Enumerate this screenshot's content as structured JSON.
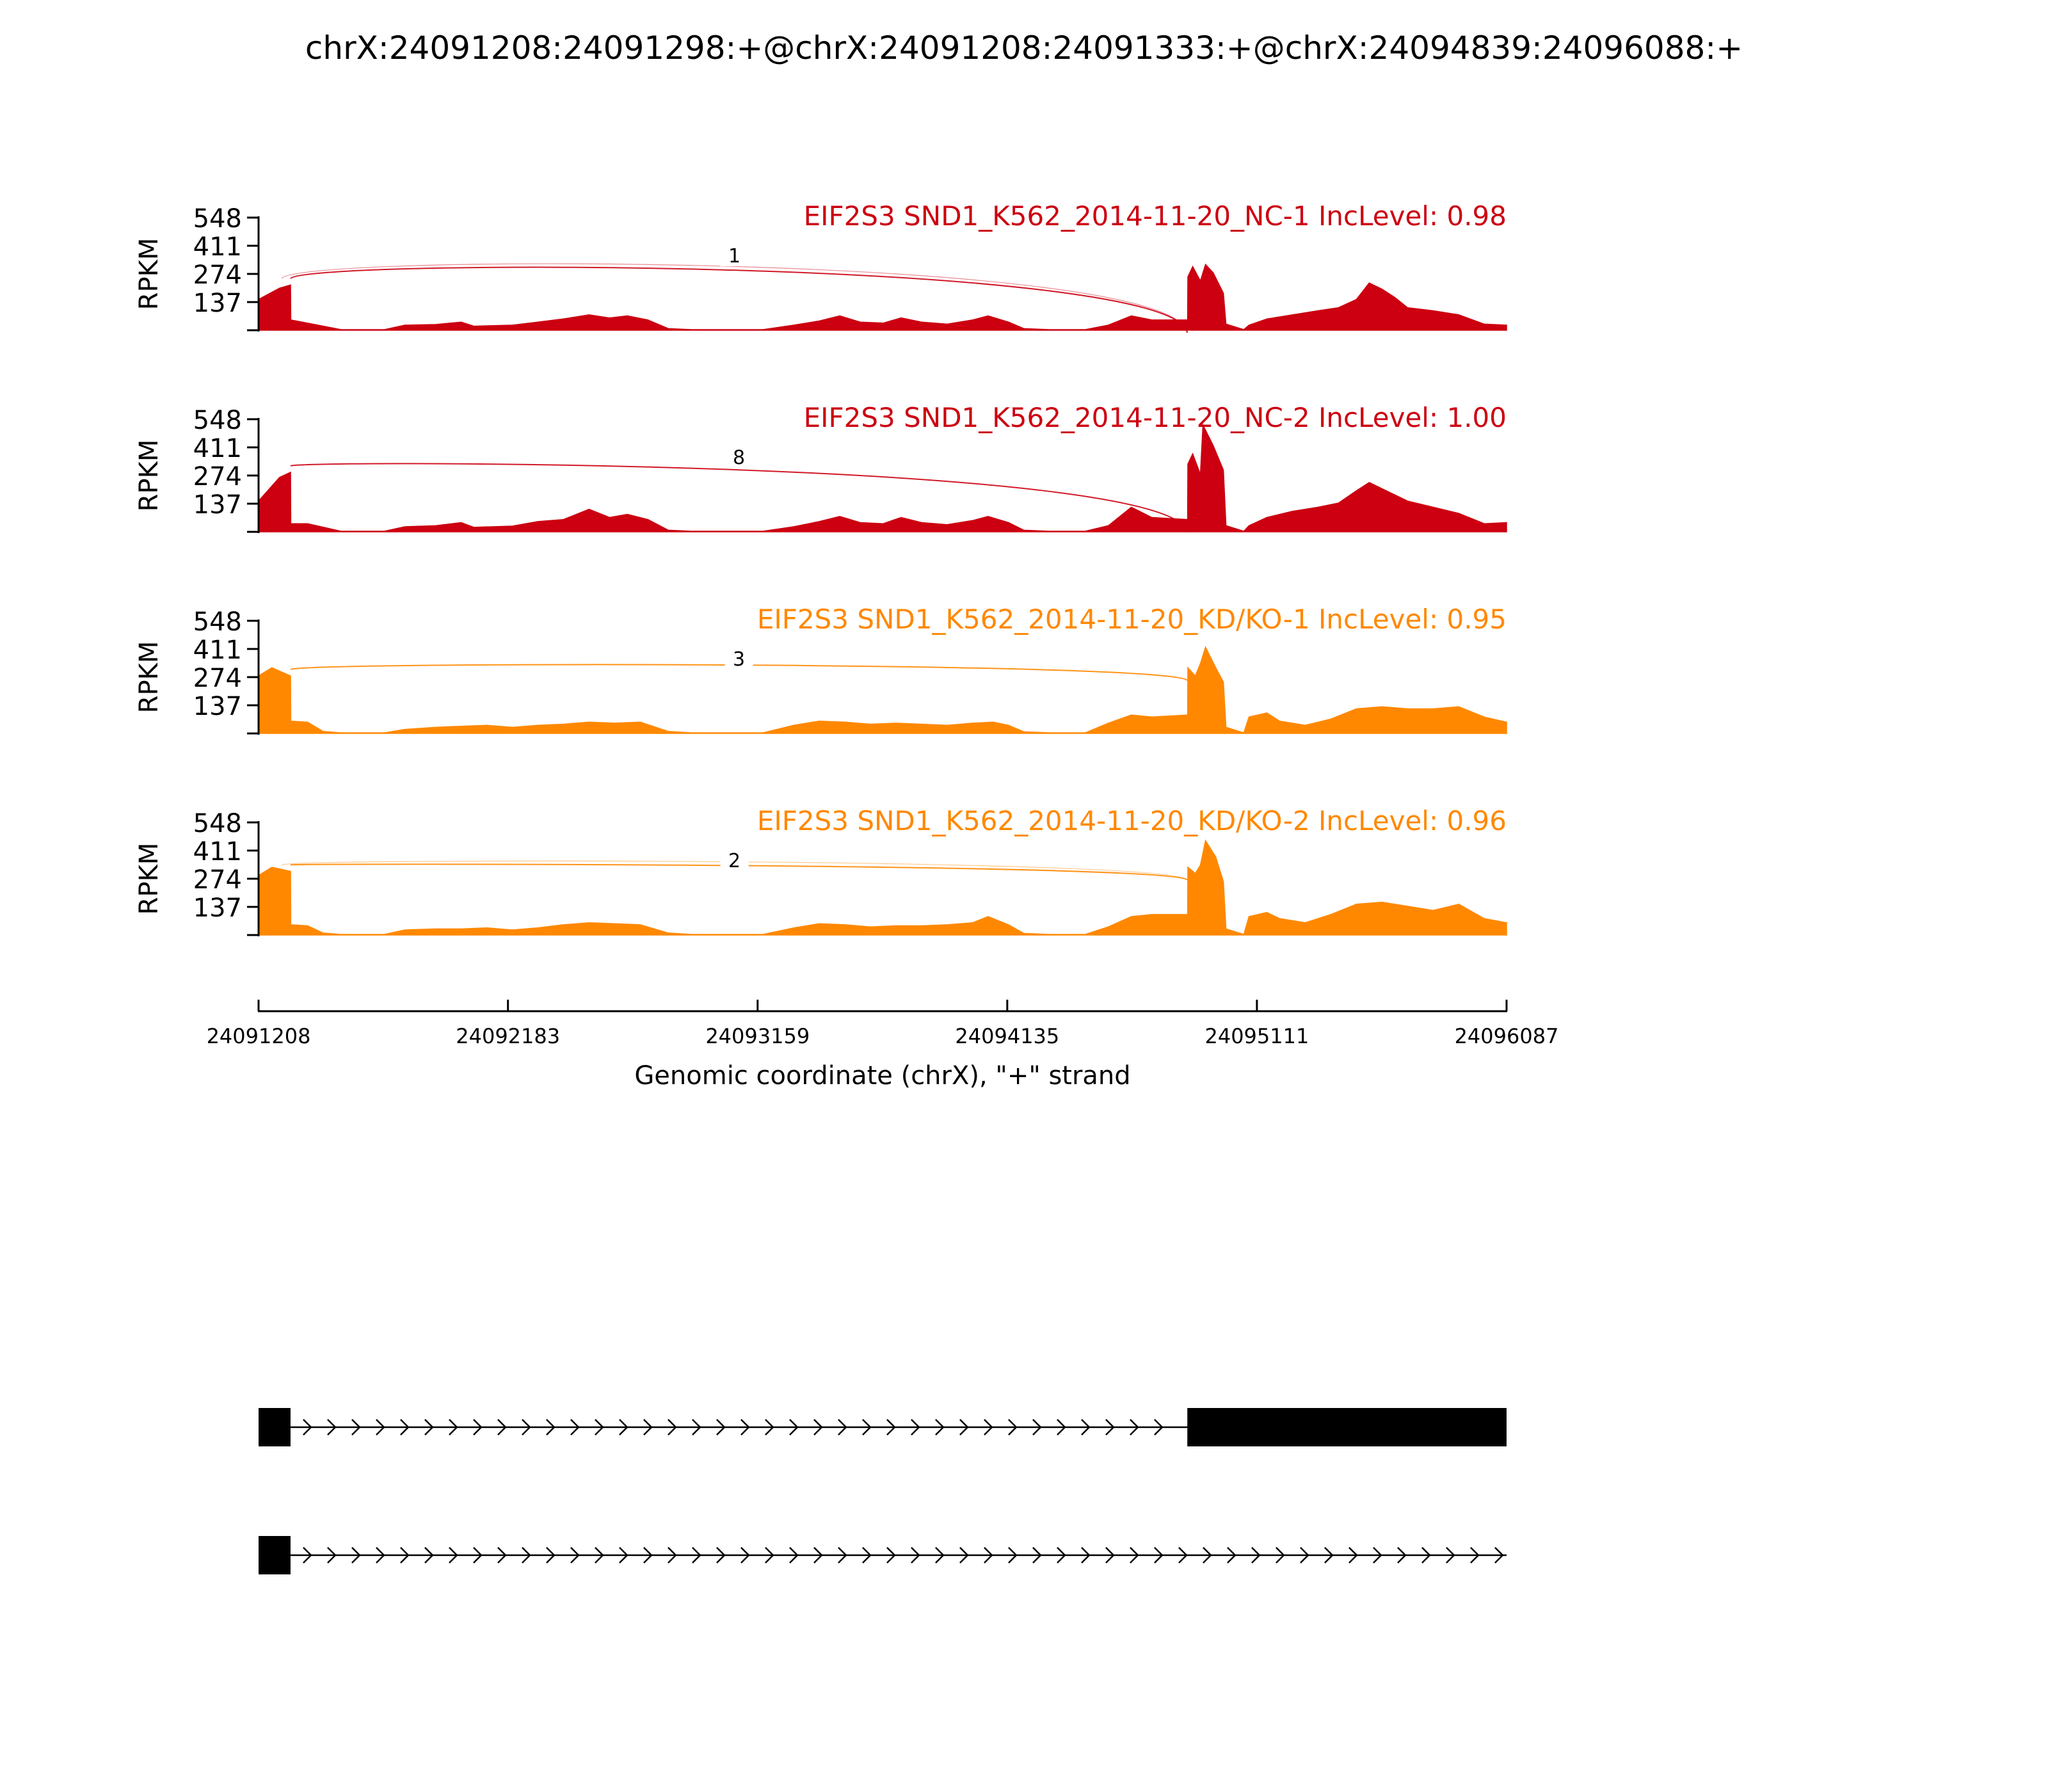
{
  "chart_data": {
    "type": "area",
    "title": "chrX:24091208:24091298:+@chrX:24091208:24091333:+@chrX:24094839:24096088:+",
    "xlabel": "Genomic coordinate (chrX), \"+\" strand",
    "ylabel": "RPKM",
    "xlim": [
      24091208,
      24096087
    ],
    "xticks": [
      24091208,
      24092183,
      24093159,
      24094135,
      24095111,
      24096087
    ],
    "ylim": [
      0,
      548
    ],
    "yticks": [
      137,
      274,
      411,
      548
    ],
    "colors": {
      "NC": "#cc0011",
      "KD": "#ff8800"
    },
    "tracks": [
      {
        "label": "EIF2S3 SND1_K562_2014-11-20_NC-1 IncLevel: 0.98",
        "group": "NC",
        "color": "#cc0011",
        "junctions": [
          {
            "start": 24091298,
            "end": 24094839,
            "count": "1"
          },
          {
            "start": 24091333,
            "end": 24094839,
            "count": "1"
          }
        ],
        "coverage": [
          [
            24091208,
            150
          ],
          [
            24091290,
            205
          ],
          [
            24091333,
            220
          ],
          [
            24091334,
            50
          ],
          [
            24091400,
            35
          ],
          [
            24091530,
            3
          ],
          [
            24091700,
            3
          ],
          [
            24091780,
            25
          ],
          [
            24091900,
            28
          ],
          [
            24092000,
            40
          ],
          [
            24092050,
            20
          ],
          [
            24092200,
            25
          ],
          [
            24092300,
            40
          ],
          [
            24092400,
            55
          ],
          [
            24092500,
            75
          ],
          [
            24092580,
            60
          ],
          [
            24092650,
            70
          ],
          [
            24092730,
            50
          ],
          [
            24092810,
            8
          ],
          [
            24092900,
            3
          ],
          [
            24093180,
            3
          ],
          [
            24093300,
            25
          ],
          [
            24093400,
            45
          ],
          [
            24093480,
            70
          ],
          [
            24093560,
            40
          ],
          [
            24093650,
            35
          ],
          [
            24093720,
            60
          ],
          [
            24093800,
            40
          ],
          [
            24093900,
            30
          ],
          [
            24094000,
            50
          ],
          [
            24094060,
            70
          ],
          [
            24094140,
            40
          ],
          [
            24094200,
            8
          ],
          [
            24094300,
            3
          ],
          [
            24094440,
            3
          ],
          [
            24094530,
            25
          ],
          [
            24094620,
            70
          ],
          [
            24094700,
            50
          ],
          [
            24094840,
            50
          ],
          [
            24094841,
            260
          ],
          [
            24094860,
            310
          ],
          [
            24094890,
            240
          ],
          [
            24094910,
            320
          ],
          [
            24094940,
            280
          ],
          [
            24094980,
            180
          ],
          [
            24094990,
            30
          ],
          [
            24095060,
            3
          ],
          [
            24095080,
            25
          ],
          [
            24095150,
            55
          ],
          [
            24095250,
            75
          ],
          [
            24095350,
            95
          ],
          [
            24095430,
            110
          ],
          [
            24095500,
            150
          ],
          [
            24095550,
            230
          ],
          [
            24095600,
            200
          ],
          [
            24095650,
            160
          ],
          [
            24095700,
            110
          ],
          [
            24095800,
            95
          ],
          [
            24095900,
            75
          ],
          [
            24096000,
            30
          ],
          [
            24096087,
            25
          ]
        ]
      },
      {
        "label": "EIF2S3 SND1_K562_2014-11-20_NC-2 IncLevel: 1.00",
        "group": "NC",
        "color": "#cc0011",
        "junctions": [
          {
            "start": 24091333,
            "end": 24094839,
            "count": "8"
          }
        ],
        "coverage": [
          [
            24091208,
            150
          ],
          [
            24091290,
            265
          ],
          [
            24091333,
            290
          ],
          [
            24091334,
            40
          ],
          [
            24091400,
            40
          ],
          [
            24091530,
            3
          ],
          [
            24091700,
            3
          ],
          [
            24091780,
            25
          ],
          [
            24091900,
            30
          ],
          [
            24092000,
            45
          ],
          [
            24092050,
            22
          ],
          [
            24092200,
            28
          ],
          [
            24092300,
            50
          ],
          [
            24092400,
            60
          ],
          [
            24092500,
            110
          ],
          [
            24092580,
            70
          ],
          [
            24092650,
            85
          ],
          [
            24092730,
            60
          ],
          [
            24092810,
            8
          ],
          [
            24092900,
            3
          ],
          [
            24093180,
            3
          ],
          [
            24093300,
            25
          ],
          [
            24093400,
            50
          ],
          [
            24093480,
            75
          ],
          [
            24093560,
            45
          ],
          [
            24093650,
            40
          ],
          [
            24093720,
            70
          ],
          [
            24093800,
            45
          ],
          [
            24093900,
            35
          ],
          [
            24094000,
            55
          ],
          [
            24094060,
            75
          ],
          [
            24094140,
            45
          ],
          [
            24094200,
            8
          ],
          [
            24094300,
            3
          ],
          [
            24094440,
            3
          ],
          [
            24094530,
            30
          ],
          [
            24094620,
            120
          ],
          [
            24094700,
            70
          ],
          [
            24094840,
            60
          ],
          [
            24094841,
            330
          ],
          [
            24094860,
            380
          ],
          [
            24094890,
            280
          ],
          [
            24094900,
            520
          ],
          [
            24094940,
            420
          ],
          [
            24094980,
            300
          ],
          [
            24094990,
            30
          ],
          [
            24095060,
            3
          ],
          [
            24095080,
            30
          ],
          [
            24095150,
            70
          ],
          [
            24095250,
            100
          ],
          [
            24095350,
            120
          ],
          [
            24095430,
            140
          ],
          [
            24095500,
            200
          ],
          [
            24095550,
            240
          ],
          [
            24095600,
            210
          ],
          [
            24095650,
            180
          ],
          [
            24095700,
            150
          ],
          [
            24095800,
            120
          ],
          [
            24095900,
            90
          ],
          [
            24096000,
            40
          ],
          [
            24096087,
            45
          ]
        ]
      },
      {
        "label": "EIF2S3 SND1_K562_2014-11-20_KD/KO-1 IncLevel: 0.95",
        "group": "KD",
        "color": "#ff8800",
        "junctions": [
          {
            "start": 24091333,
            "end": 24094839,
            "count": "3"
          }
        ],
        "coverage": [
          [
            24091208,
            280
          ],
          [
            24091260,
            320
          ],
          [
            24091333,
            280
          ],
          [
            24091334,
            60
          ],
          [
            24091400,
            55
          ],
          [
            24091460,
            10
          ],
          [
            24091530,
            3
          ],
          [
            24091700,
            3
          ],
          [
            24091780,
            20
          ],
          [
            24091900,
            30
          ],
          [
            24092000,
            35
          ],
          [
            24092100,
            40
          ],
          [
            24092200,
            30
          ],
          [
            24092300,
            40
          ],
          [
            24092400,
            45
          ],
          [
            24092500,
            55
          ],
          [
            24092600,
            50
          ],
          [
            24092700,
            55
          ],
          [
            24092810,
            10
          ],
          [
            24092900,
            3
          ],
          [
            24093180,
            3
          ],
          [
            24093300,
            40
          ],
          [
            24093400,
            60
          ],
          [
            24093500,
            55
          ],
          [
            24093600,
            45
          ],
          [
            24093700,
            50
          ],
          [
            24093800,
            45
          ],
          [
            24093900,
            40
          ],
          [
            24094000,
            50
          ],
          [
            24094080,
            55
          ],
          [
            24094140,
            40
          ],
          [
            24094200,
            8
          ],
          [
            24094300,
            3
          ],
          [
            24094440,
            3
          ],
          [
            24094530,
            50
          ],
          [
            24094620,
            90
          ],
          [
            24094700,
            80
          ],
          [
            24094840,
            90
          ],
          [
            24094841,
            320
          ],
          [
            24094870,
            280
          ],
          [
            24094890,
            340
          ],
          [
            24094910,
            420
          ],
          [
            24094950,
            320
          ],
          [
            24094980,
            250
          ],
          [
            24094990,
            30
          ],
          [
            24095060,
            3
          ],
          [
            24095080,
            80
          ],
          [
            24095150,
            100
          ],
          [
            24095200,
            60
          ],
          [
            24095300,
            40
          ],
          [
            24095400,
            70
          ],
          [
            24095500,
            120
          ],
          [
            24095600,
            130
          ],
          [
            24095700,
            120
          ],
          [
            24095800,
            120
          ],
          [
            24095900,
            130
          ],
          [
            24096000,
            80
          ],
          [
            24096087,
            55
          ]
        ]
      },
      {
        "label": "EIF2S3 SND1_K562_2014-11-20_KD/KO-2 IncLevel: 0.96",
        "group": "KD",
        "color": "#ff8800",
        "junctions": [
          {
            "start": 24091298,
            "end": 24094839,
            "count": "2"
          },
          {
            "start": 24091333,
            "end": 24094839,
            "count": "2"
          }
        ],
        "coverage": [
          [
            24091208,
            290
          ],
          [
            24091260,
            330
          ],
          [
            24091333,
            310
          ],
          [
            24091334,
            50
          ],
          [
            24091400,
            45
          ],
          [
            24091460,
            10
          ],
          [
            24091530,
            3
          ],
          [
            24091700,
            3
          ],
          [
            24091780,
            25
          ],
          [
            24091900,
            30
          ],
          [
            24092000,
            30
          ],
          [
            24092100,
            35
          ],
          [
            24092200,
            25
          ],
          [
            24092300,
            35
          ],
          [
            24092400,
            50
          ],
          [
            24092500,
            60
          ],
          [
            24092600,
            55
          ],
          [
            24092700,
            50
          ],
          [
            24092810,
            10
          ],
          [
            24092900,
            3
          ],
          [
            24093180,
            3
          ],
          [
            24093300,
            35
          ],
          [
            24093400,
            55
          ],
          [
            24093500,
            50
          ],
          [
            24093600,
            40
          ],
          [
            24093700,
            45
          ],
          [
            24093800,
            45
          ],
          [
            24093900,
            50
          ],
          [
            24094000,
            60
          ],
          [
            24094060,
            90
          ],
          [
            24094140,
            50
          ],
          [
            24094200,
            8
          ],
          [
            24094300,
            3
          ],
          [
            24094440,
            3
          ],
          [
            24094530,
            40
          ],
          [
            24094620,
            90
          ],
          [
            24094700,
            100
          ],
          [
            24094840,
            100
          ],
          [
            24094841,
            330
          ],
          [
            24094870,
            300
          ],
          [
            24094890,
            340
          ],
          [
            24094910,
            460
          ],
          [
            24094950,
            380
          ],
          [
            24094980,
            260
          ],
          [
            24094990,
            30
          ],
          [
            24095060,
            3
          ],
          [
            24095080,
            90
          ],
          [
            24095150,
            110
          ],
          [
            24095200,
            80
          ],
          [
            24095300,
            60
          ],
          [
            24095400,
            100
          ],
          [
            24095500,
            150
          ],
          [
            24095600,
            160
          ],
          [
            24095700,
            140
          ],
          [
            24095800,
            120
          ],
          [
            24095900,
            150
          ],
          [
            24096000,
            80
          ],
          [
            24096087,
            60
          ]
        ]
      }
    ],
    "isoforms": [
      {
        "exons": [
          [
            24091208,
            24091333
          ],
          [
            24094839,
            24096087
          ]
        ],
        "intron_end": 24096087
      },
      {
        "exons": [
          [
            24091208,
            24091333
          ]
        ],
        "intron_end": 24096087
      }
    ]
  }
}
